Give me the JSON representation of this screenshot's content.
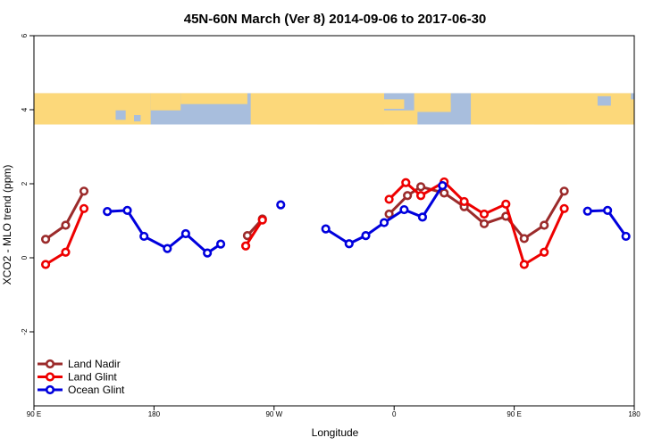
{
  "chart_data": {
    "type": "line",
    "title": "45N-60N March (Ver 8)   2014-09-06 to 2017-06-30",
    "xlabel": "Longitude",
    "ylabel": "XCO2 - MLO trend (ppm)",
    "xlim": [
      0,
      360
    ],
    "ylim": [
      -4,
      6
    ],
    "x_ticks": [
      {
        "value": 0,
        "label": "90 E"
      },
      {
        "value": 72,
        "label": "180"
      },
      {
        "value": 144,
        "label": "90 W"
      },
      {
        "value": 216,
        "label": "0"
      },
      {
        "value": 288,
        "label": "90 E"
      },
      {
        "value": 360,
        "label": "180"
      }
    ],
    "y_ticks": [
      {
        "value": -2,
        "label": "-2"
      },
      {
        "value": 0,
        "label": "0"
      },
      {
        "value": 2,
        "label": "2"
      },
      {
        "value": 4,
        "label": "4"
      },
      {
        "value": 6,
        "label": "6"
      }
    ],
    "map_band": {
      "y_bottom": 3.6,
      "y_top": 4.45,
      "ocean_color": "#a8bedd",
      "land_color": "#fcd87a"
    },
    "legend_position": "bottom-left",
    "series": [
      {
        "name": "Land Nadir",
        "color": "#9b2b2b",
        "segments": [
          [
            [
              7,
              0.5
            ],
            [
              19,
              0.88
            ],
            [
              30,
              1.8
            ]
          ],
          [
            [
              128,
              0.6
            ],
            [
              137,
              1.05
            ]
          ],
          [
            [
              213,
              1.18
            ],
            [
              224,
              1.68
            ],
            [
              232,
              1.92
            ],
            [
              246,
              1.75
            ],
            [
              258,
              1.38
            ],
            [
              270,
              0.92
            ],
            [
              283,
              1.12
            ],
            [
              294,
              0.52
            ],
            [
              306,
              0.88
            ],
            [
              318,
              1.8
            ]
          ]
        ]
      },
      {
        "name": "Land Glint",
        "color": "#ee0000",
        "segments": [
          [
            [
              7,
              -0.18
            ],
            [
              19,
              0.15
            ],
            [
              30,
              1.33
            ]
          ],
          [
            [
              127,
              0.32
            ],
            [
              137,
              1.02
            ]
          ],
          [
            [
              213,
              1.58
            ],
            [
              223,
              2.03
            ],
            [
              232,
              1.68
            ],
            [
              246,
              2.05
            ],
            [
              258,
              1.52
            ],
            [
              270,
              1.18
            ],
            [
              283,
              1.45
            ],
            [
              294,
              -0.18
            ],
            [
              306,
              0.15
            ],
            [
              318,
              1.33
            ]
          ]
        ]
      },
      {
        "name": "Ocean Glint",
        "color": "#0000dd",
        "segments": [
          [
            [
              44,
              1.25
            ],
            [
              56,
              1.28
            ],
            [
              66,
              0.58
            ],
            [
              80,
              0.25
            ],
            [
              91,
              0.65
            ],
            [
              104,
              0.13
            ],
            [
              112,
              0.37
            ]
          ],
          [
            [
              148,
              1.43
            ]
          ],
          [
            [
              175,
              0.78
            ],
            [
              189,
              0.38
            ],
            [
              199,
              0.6
            ],
            [
              210,
              0.95
            ],
            [
              222,
              1.3
            ],
            [
              233,
              1.1
            ],
            [
              245,
              1.95
            ]
          ],
          [
            [
              332,
              1.26
            ],
            [
              344,
              1.28
            ],
            [
              355,
              0.58
            ]
          ]
        ]
      }
    ]
  }
}
